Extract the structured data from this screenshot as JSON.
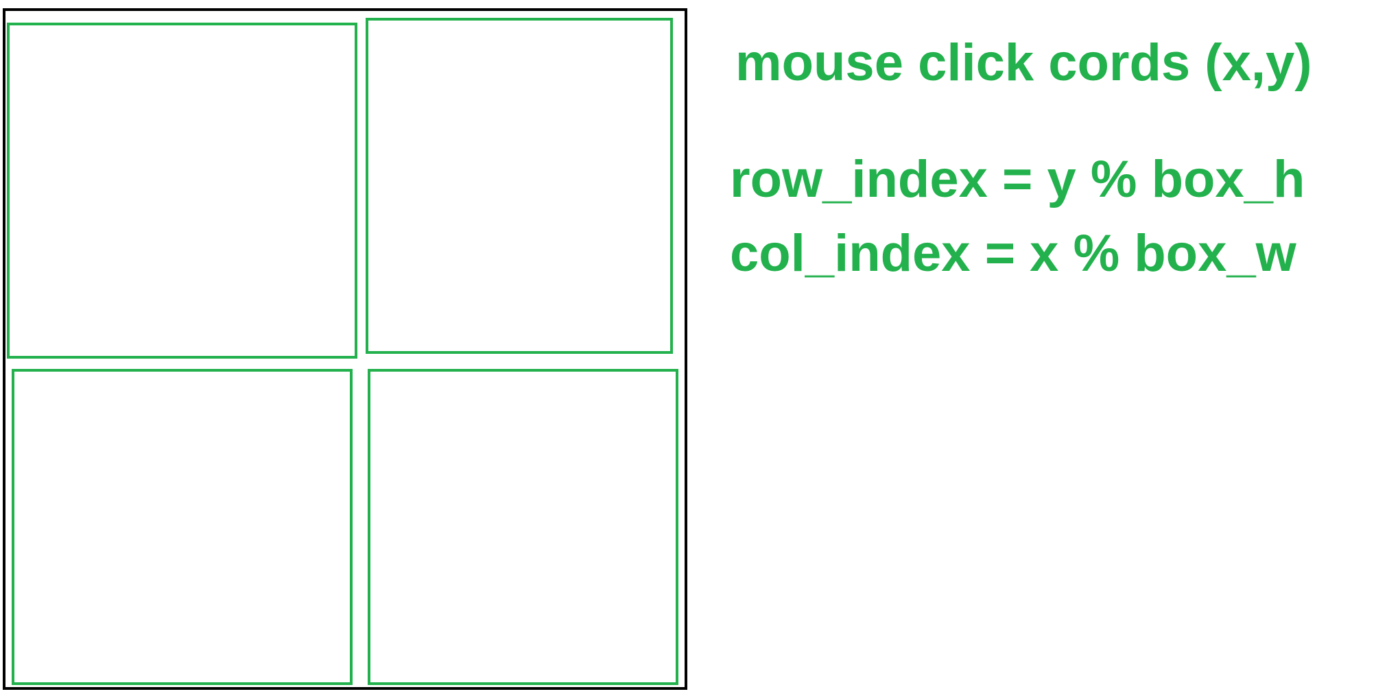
{
  "colors": {
    "frame": "#000000",
    "cell_border": "#22b14c",
    "text": "#22b14c",
    "background": "#ffffff"
  },
  "grid": {
    "rows": 2,
    "cols": 2
  },
  "annotations": {
    "title": "mouse click cords (x,y)",
    "row_formula": "row_index = y % box_h",
    "col_formula": "col_index = x % box_w"
  }
}
